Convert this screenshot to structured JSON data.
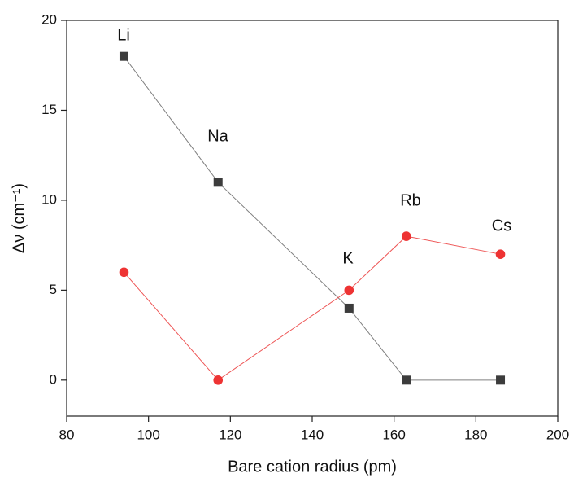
{
  "chart_data": {
    "type": "line",
    "xlabel": "Bare cation radius (pm)",
    "ylabel": "Δν (cm⁻¹)",
    "x": [
      94,
      117,
      149,
      163,
      186
    ],
    "series": [
      {
        "color": "#3c3c3c",
        "line_color": "#808080",
        "marker": "square",
        "values": [
          18,
          11,
          4,
          0,
          0
        ]
      },
      {
        "color": "#ee3333",
        "line_color": "#ee5555",
        "marker": "circle",
        "values": [
          6,
          0,
          5,
          8,
          7
        ]
      }
    ],
    "annotations": [
      "Li",
      "Na",
      "K",
      "Rb",
      "Cs"
    ],
    "xlim": [
      80,
      200
    ],
    "xticks": [
      80,
      100,
      120,
      140,
      160,
      180,
      200
    ],
    "ylim": [
      -2,
      20
    ],
    "yticks": [
      0,
      5,
      10,
      15,
      20
    ],
    "grid": false
  }
}
